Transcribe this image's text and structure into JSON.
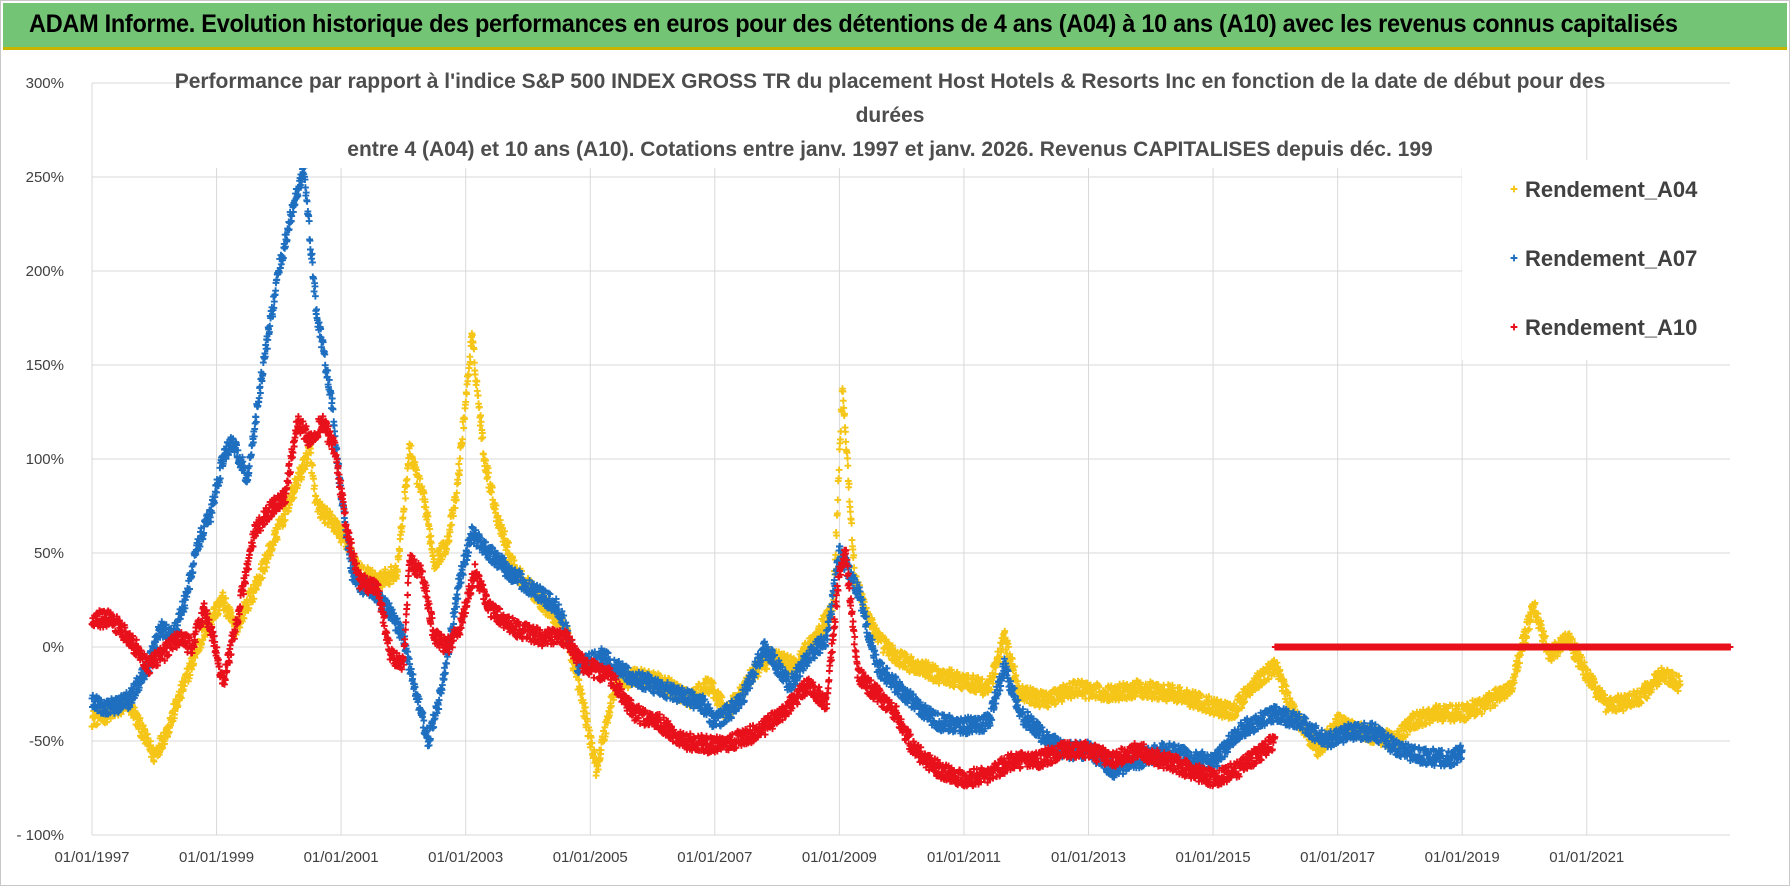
{
  "header": {
    "title": "ADAM Informe. Evolution historique des performances en euros pour des détentions de 4 ans (A04) à 10 ans (A10) avec les revenus connus capitalisés"
  },
  "colors": {
    "banner": "#74c476",
    "A04": "#f5c518",
    "A07": "#1f6fc0",
    "A10": "#e8101a",
    "grid": "#d9d9d9"
  },
  "chart_data": {
    "type": "scatter",
    "title_lines": [
      "Performance par rapport à l'indice S&P 500 INDEX GROSS TR  du placement Host Hotels & Resorts Inc en fonction de la date de début pour des",
      "durées",
      "entre 4 (A04) et 10 ans (A10). Cotations entre janv. 1997 et janv. 2026. Revenus CAPITALISES depuis déc. 199"
    ],
    "xlabel": "",
    "ylabel": "",
    "x_range": [
      1997.0,
      2023.3
    ],
    "ylim": [
      -100,
      300
    ],
    "y_ticks": [
      300,
      250,
      200,
      150,
      100,
      50,
      0,
      -50,
      -100
    ],
    "y_tick_labels": [
      "300%",
      "250%",
      "200%",
      "150%",
      "100%",
      "50%",
      "0%",
      "-50%",
      "- 100%"
    ],
    "x_ticks": [
      1997,
      1999,
      2001,
      2003,
      2005,
      2007,
      2009,
      2011,
      2013,
      2015,
      2017,
      2019,
      2021
    ],
    "x_tick_labels": [
      "01/01/1997",
      "01/01/1999",
      "01/01/2001",
      "01/01/2003",
      "01/01/2005",
      "01/01/2007",
      "01/01/2009",
      "01/01/2011",
      "01/01/2013",
      "01/01/2015",
      "01/01/2017",
      "01/01/2019",
      "01/01/2021"
    ],
    "grid": true,
    "legend_position": "top-right",
    "marker": "+",
    "series": [
      {
        "name": "Rendement_A04",
        "color": "#f5c518",
        "points": [
          [
            1997.0,
            -38
          ],
          [
            1997.3,
            -35
          ],
          [
            1997.6,
            -30
          ],
          [
            1997.85,
            -48
          ],
          [
            1998.0,
            -58
          ],
          [
            1998.2,
            -45
          ],
          [
            1998.5,
            -18
          ],
          [
            1998.7,
            0
          ],
          [
            1998.9,
            15
          ],
          [
            1999.1,
            25
          ],
          [
            1999.3,
            10
          ],
          [
            1999.6,
            30
          ],
          [
            1999.9,
            55
          ],
          [
            2000.2,
            80
          ],
          [
            2000.5,
            105
          ],
          [
            2000.6,
            75
          ],
          [
            2000.9,
            65
          ],
          [
            2001.1,
            55
          ],
          [
            2001.3,
            40
          ],
          [
            2001.6,
            35
          ],
          [
            2001.9,
            40
          ],
          [
            2002.1,
            105
          ],
          [
            2002.35,
            75
          ],
          [
            2002.5,
            45
          ],
          [
            2002.7,
            55
          ],
          [
            2002.85,
            80
          ],
          [
            2003.1,
            165
          ],
          [
            2003.3,
            100
          ],
          [
            2003.5,
            70
          ],
          [
            2003.8,
            40
          ],
          [
            2004.2,
            25
          ],
          [
            2004.6,
            10
          ],
          [
            2004.85,
            -25
          ],
          [
            2005.1,
            -65
          ],
          [
            2005.4,
            -20
          ],
          [
            2005.8,
            -15
          ],
          [
            2006.2,
            -20
          ],
          [
            2006.6,
            -28
          ],
          [
            2006.9,
            -20
          ],
          [
            2007.2,
            -35
          ],
          [
            2007.6,
            -15
          ],
          [
            2007.9,
            -5
          ],
          [
            2008.3,
            -10
          ],
          [
            2008.6,
            5
          ],
          [
            2008.9,
            20
          ],
          [
            2009.05,
            140
          ],
          [
            2009.25,
            35
          ],
          [
            2009.6,
            5
          ],
          [
            2009.9,
            -5
          ],
          [
            2010.2,
            -10
          ],
          [
            2010.6,
            -15
          ],
          [
            2011.0,
            -18
          ],
          [
            2011.4,
            -22
          ],
          [
            2011.65,
            5
          ],
          [
            2011.9,
            -25
          ],
          [
            2012.3,
            -28
          ],
          [
            2012.8,
            -22
          ],
          [
            2013.3,
            -25
          ],
          [
            2013.8,
            -22
          ],
          [
            2014.4,
            -25
          ],
          [
            2014.9,
            -30
          ],
          [
            2015.3,
            -35
          ],
          [
            2015.7,
            -18
          ],
          [
            2016.0,
            -10
          ],
          [
            2016.3,
            -35
          ],
          [
            2016.7,
            -55
          ],
          [
            2017.0,
            -40
          ],
          [
            2017.4,
            -45
          ],
          [
            2017.9,
            -50
          ],
          [
            2018.2,
            -40
          ],
          [
            2018.6,
            -35
          ],
          [
            2019.0,
            -35
          ],
          [
            2019.4,
            -30
          ],
          [
            2019.8,
            -20
          ],
          [
            2020.0,
            5
          ],
          [
            2020.15,
            22
          ],
          [
            2020.4,
            -5
          ],
          [
            2020.7,
            5
          ],
          [
            2021.0,
            -15
          ],
          [
            2021.3,
            -30
          ],
          [
            2021.6,
            -30
          ],
          [
            2021.9,
            -25
          ],
          [
            2022.2,
            -15
          ],
          [
            2022.5,
            -20
          ]
        ]
      },
      {
        "name": "Rendement_A07",
        "color": "#1f6fc0",
        "points": [
          [
            1997.0,
            -30
          ],
          [
            1997.3,
            -32
          ],
          [
            1997.6,
            -28
          ],
          [
            1997.9,
            -10
          ],
          [
            1998.1,
            10
          ],
          [
            1998.3,
            5
          ],
          [
            1998.5,
            25
          ],
          [
            1998.7,
            55
          ],
          [
            1998.9,
            70
          ],
          [
            1999.1,
            100
          ],
          [
            1999.25,
            110
          ],
          [
            1999.5,
            90
          ],
          [
            1999.75,
            150
          ],
          [
            2000.0,
            200
          ],
          [
            2000.2,
            230
          ],
          [
            2000.4,
            255
          ],
          [
            2000.6,
            180
          ],
          [
            2000.85,
            130
          ],
          [
            2001.0,
            80
          ],
          [
            2001.2,
            35
          ],
          [
            2001.5,
            30
          ],
          [
            2001.75,
            20
          ],
          [
            2002.0,
            5
          ],
          [
            2002.2,
            -25
          ],
          [
            2002.4,
            -50
          ],
          [
            2002.6,
            -25
          ],
          [
            2002.9,
            35
          ],
          [
            2003.1,
            60
          ],
          [
            2003.4,
            50
          ],
          [
            2003.7,
            40
          ],
          [
            2004.1,
            30
          ],
          [
            2004.5,
            20
          ],
          [
            2004.8,
            -10
          ],
          [
            2005.2,
            -5
          ],
          [
            2005.6,
            -15
          ],
          [
            2006.0,
            -20
          ],
          [
            2006.4,
            -25
          ],
          [
            2006.8,
            -30
          ],
          [
            2007.0,
            -40
          ],
          [
            2007.4,
            -30
          ],
          [
            2007.8,
            0
          ],
          [
            2008.2,
            -20
          ],
          [
            2008.5,
            -5
          ],
          [
            2008.8,
            5
          ],
          [
            2009.0,
            50
          ],
          [
            2009.3,
            30
          ],
          [
            2009.6,
            -10
          ],
          [
            2009.9,
            -20
          ],
          [
            2010.2,
            -30
          ],
          [
            2010.6,
            -40
          ],
          [
            2011.0,
            -42
          ],
          [
            2011.4,
            -40
          ],
          [
            2011.65,
            -10
          ],
          [
            2011.9,
            -35
          ],
          [
            2012.2,
            -45
          ],
          [
            2012.6,
            -55
          ],
          [
            2013.0,
            -55
          ],
          [
            2013.4,
            -65
          ],
          [
            2013.8,
            -60
          ],
          [
            2014.2,
            -55
          ],
          [
            2014.6,
            -58
          ],
          [
            2015.0,
            -62
          ],
          [
            2015.4,
            -45
          ],
          [
            2015.7,
            -40
          ],
          [
            2016.0,
            -35
          ],
          [
            2016.4,
            -40
          ],
          [
            2016.8,
            -50
          ],
          [
            2017.2,
            -45
          ],
          [
            2017.6,
            -45
          ],
          [
            2018.0,
            -55
          ],
          [
            2018.4,
            -58
          ],
          [
            2018.8,
            -60
          ],
          [
            2019.0,
            -55
          ]
        ]
      },
      {
        "name": "Rendement_A10",
        "color": "#e8101a",
        "points": [
          [
            1997.0,
            15
          ],
          [
            1997.3,
            15
          ],
          [
            1997.6,
            5
          ],
          [
            1997.9,
            -10
          ],
          [
            1998.1,
            -5
          ],
          [
            1998.4,
            5
          ],
          [
            1998.6,
            0
          ],
          [
            1998.8,
            20
          ],
          [
            1998.95,
            5
          ],
          [
            1999.1,
            -20
          ],
          [
            1999.3,
            10
          ],
          [
            1999.6,
            60
          ],
          [
            1999.9,
            75
          ],
          [
            2000.1,
            80
          ],
          [
            2000.3,
            120
          ],
          [
            2000.5,
            110
          ],
          [
            2000.7,
            120
          ],
          [
            2000.9,
            105
          ],
          [
            2001.1,
            60
          ],
          [
            2001.3,
            35
          ],
          [
            2001.6,
            30
          ],
          [
            2001.8,
            -5
          ],
          [
            2002.0,
            -10
          ],
          [
            2002.1,
            45
          ],
          [
            2002.3,
            40
          ],
          [
            2002.5,
            5
          ],
          [
            2002.7,
            0
          ],
          [
            2002.9,
            10
          ],
          [
            2003.15,
            40
          ],
          [
            2003.4,
            20
          ],
          [
            2003.8,
            10
          ],
          [
            2004.2,
            5
          ],
          [
            2004.6,
            5
          ],
          [
            2004.9,
            -10
          ],
          [
            2005.3,
            -15
          ],
          [
            2005.7,
            -35
          ],
          [
            2006.1,
            -40
          ],
          [
            2006.5,
            -50
          ],
          [
            2006.9,
            -52
          ],
          [
            2007.3,
            -50
          ],
          [
            2007.7,
            -45
          ],
          [
            2008.1,
            -35
          ],
          [
            2008.5,
            -20
          ],
          [
            2008.8,
            -30
          ],
          [
            2009.0,
            40
          ],
          [
            2009.1,
            50
          ],
          [
            2009.3,
            -15
          ],
          [
            2009.6,
            -25
          ],
          [
            2009.9,
            -35
          ],
          [
            2010.2,
            -55
          ],
          [
            2010.6,
            -65
          ],
          [
            2011.0,
            -70
          ],
          [
            2011.4,
            -68
          ],
          [
            2011.8,
            -60
          ],
          [
            2012.2,
            -60
          ],
          [
            2012.6,
            -55
          ],
          [
            2013.0,
            -55
          ],
          [
            2013.4,
            -60
          ],
          [
            2013.8,
            -55
          ],
          [
            2014.2,
            -60
          ],
          [
            2014.6,
            -65
          ],
          [
            2015.0,
            -70
          ],
          [
            2015.4,
            -65
          ],
          [
            2015.8,
            -55
          ],
          [
            2016.0,
            -50
          ],
          [
            2016.0,
            0
          ],
          [
            2023.3,
            0
          ]
        ]
      }
    ]
  }
}
